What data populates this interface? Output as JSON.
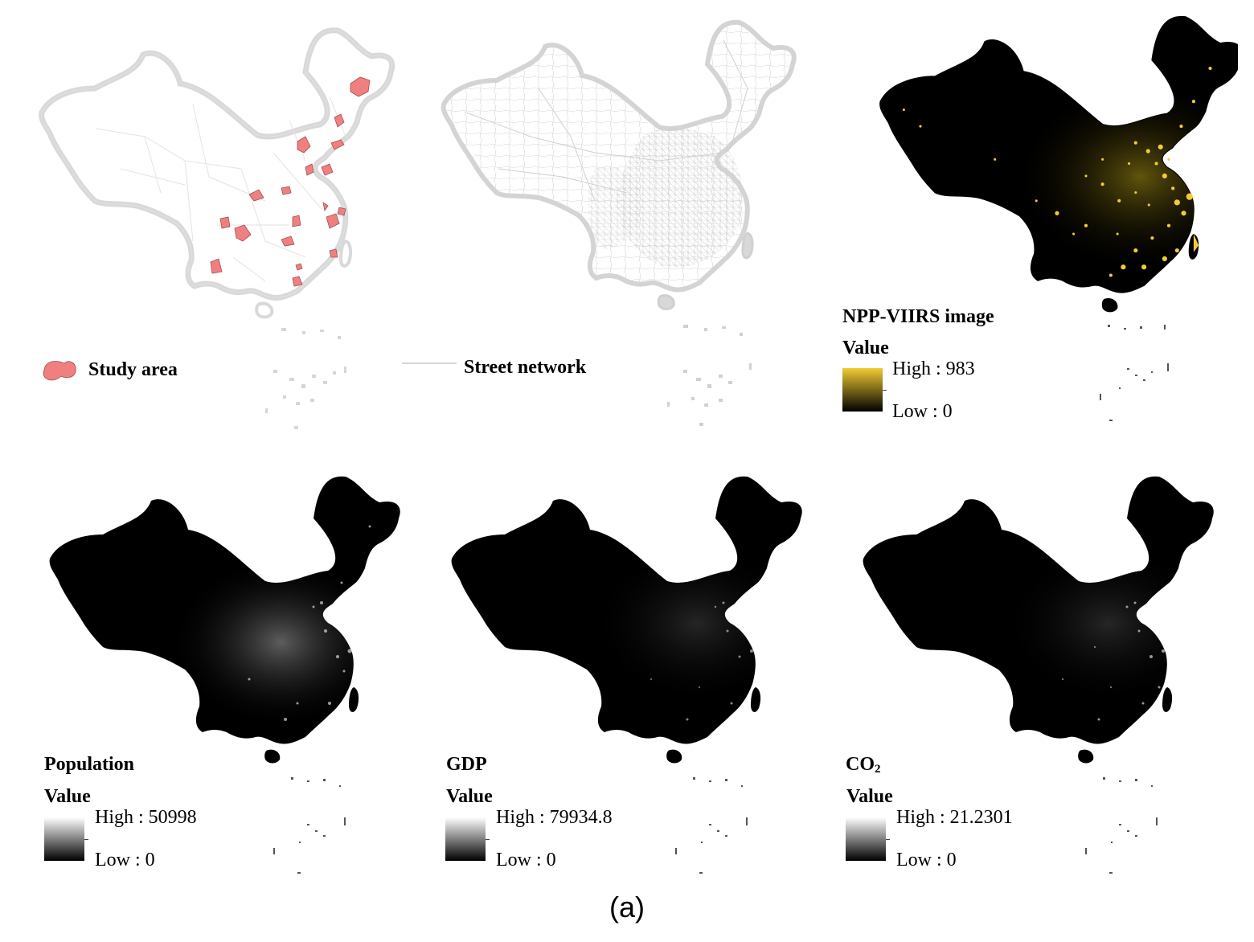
{
  "panels": [
    {
      "id": "study-area",
      "title": "",
      "legend_label": "Study area",
      "theme": "outline",
      "accent": "#f08080"
    },
    {
      "id": "street-network",
      "title": "",
      "legend_label": "Street network",
      "theme": "streets",
      "accent": "#c8c8c8"
    },
    {
      "id": "npp-viirs",
      "title": "NPP-VIIRS image",
      "value_label": "Value",
      "high": "High : 983",
      "low": "Low : 0",
      "theme": "dark",
      "high_color": "#f2cc33",
      "low_color": "#000000"
    },
    {
      "id": "population",
      "title": "Population",
      "value_label": "Value",
      "high": "High : 50998",
      "low": "Low : 0",
      "theme": "dark",
      "high_color": "#ffffff",
      "low_color": "#000000"
    },
    {
      "id": "gdp",
      "title": "GDP",
      "value_label": "Value",
      "high": "High : 79934.8",
      "low": "Low : 0",
      "theme": "dark",
      "high_color": "#ffffff",
      "low_color": "#000000"
    },
    {
      "id": "co2",
      "title": "CO",
      "title_sub": "2",
      "value_label": "Value",
      "high": "High : 21.2301",
      "low": "Low : 0",
      "theme": "dark",
      "high_color": "#ffffff",
      "low_color": "#000000"
    }
  ],
  "caption": "(a)"
}
